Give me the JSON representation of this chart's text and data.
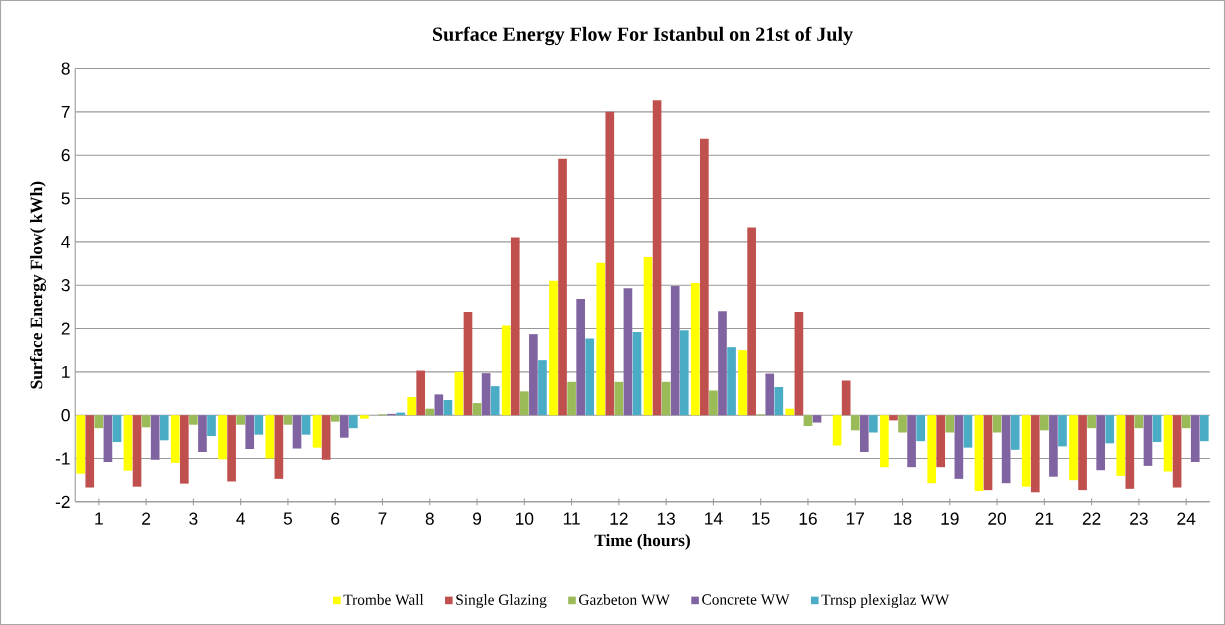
{
  "chart_data": {
    "type": "bar",
    "title": "Surface Energy Flow For Istanbul on 21st of July",
    "xlabel": "Time (hours)",
    "ylabel": "Surface Energy Flow( kWh)",
    "categories": [
      "1",
      "2",
      "3",
      "4",
      "5",
      "6",
      "7",
      "8",
      "9",
      "10",
      "11",
      "12",
      "13",
      "14",
      "15",
      "16",
      "17",
      "18",
      "19",
      "20",
      "21",
      "22",
      "23",
      "24"
    ],
    "series": [
      {
        "name": "Trombe Wall",
        "color": "#ffff00",
        "values": [
          -1.35,
          -1.28,
          -1.1,
          -1.02,
          -1.0,
          -0.75,
          -0.08,
          0.42,
          1.0,
          2.07,
          3.1,
          3.52,
          3.65,
          3.05,
          1.5,
          0.15,
          -0.7,
          -1.2,
          -1.57,
          -1.75,
          -1.65,
          -1.5,
          -1.4,
          -1.3
        ]
      },
      {
        "name": "Single Glazing",
        "color": "#c0504d",
        "values": [
          -1.67,
          -1.65,
          -1.58,
          -1.53,
          -1.47,
          -1.03,
          0,
          1.03,
          2.38,
          4.1,
          5.92,
          7.0,
          7.27,
          6.38,
          4.33,
          2.38,
          0.8,
          -0.12,
          -1.2,
          -1.73,
          -1.78,
          -1.73,
          -1.7,
          -1.67
        ]
      },
      {
        "name": "Gazbeton WW",
        "color": "#9bbb59",
        "values": [
          -0.3,
          -0.28,
          -0.22,
          -0.22,
          -0.22,
          -0.15,
          0.02,
          0.15,
          0.28,
          0.55,
          0.77,
          0.77,
          0.77,
          0.57,
          0.02,
          -0.25,
          -0.35,
          -0.4,
          -0.4,
          -0.4,
          -0.35,
          -0.3,
          -0.3,
          -0.3
        ]
      },
      {
        "name": "Concrete WW",
        "color": "#8064a2",
        "values": [
          -1.08,
          -1.03,
          -0.85,
          -0.78,
          -0.77,
          -0.52,
          0.03,
          0.48,
          0.97,
          1.87,
          2.68,
          2.93,
          2.98,
          2.4,
          0.96,
          -0.17,
          -0.85,
          -1.2,
          -1.47,
          -1.57,
          -1.42,
          -1.27,
          -1.17,
          -1.08
        ]
      },
      {
        "name": "Trnsp plexiglaz WW",
        "color": "#4bacc6",
        "values": [
          -0.62,
          -0.58,
          -0.48,
          -0.45,
          -0.45,
          -0.3,
          0.06,
          0.35,
          0.67,
          1.27,
          1.77,
          1.92,
          1.96,
          1.57,
          0.65,
          0,
          -0.4,
          -0.6,
          -0.75,
          -0.8,
          -0.72,
          -0.65,
          -0.62,
          -0.6
        ]
      }
    ],
    "ylim": [
      -2,
      8
    ],
    "yticks": [
      -2,
      -1,
      0,
      1,
      2,
      3,
      4,
      5,
      6,
      7,
      8
    ],
    "grid": "y",
    "legend": "bottom"
  }
}
